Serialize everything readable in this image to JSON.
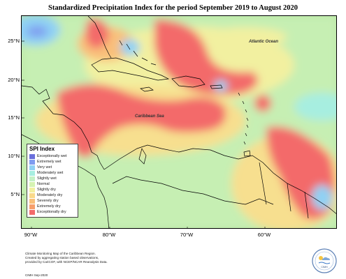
{
  "title": "Standardized Precipitation Index for the period September 2019 to August 2020",
  "map": {
    "lat_ticks": [
      "25°N",
      "20°N",
      "15°N",
      "10°N",
      "5°N"
    ],
    "lon_ticks": [
      "90°W",
      "80°W",
      "70°W",
      "60°W"
    ],
    "labels": {
      "atlantic": "Atlantic Ocean",
      "caribbean": "Caribbean Sea"
    }
  },
  "legend": {
    "title": "SPI Index",
    "items": [
      {
        "label": "Exceptionally wet",
        "color": "#6a6fdc"
      },
      {
        "label": "Extremely wet",
        "color": "#7f9cf0"
      },
      {
        "label": "Very wet",
        "color": "#8fd1f4"
      },
      {
        "label": "Moderately wet",
        "color": "#a7eee0"
      },
      {
        "label": "Slightly wet",
        "color": "#c4f1c6"
      },
      {
        "label": "Normal",
        "color": "#d5f3b2"
      },
      {
        "label": "Slightly dry",
        "color": "#f2f0a0"
      },
      {
        "label": "Moderately dry",
        "color": "#f9d98a"
      },
      {
        "label": "Severely dry",
        "color": "#f9c07a"
      },
      {
        "label": "Extremely dry",
        "color": "#f79f6c"
      },
      {
        "label": "Exceptionally dry",
        "color": "#f36b6b"
      }
    ]
  },
  "footer": {
    "lines": [
      "Climate Monitoring Map of the Caribbean Region.",
      "Created by aggregating station based observations,",
      "provided by CariCOF, with NCEP/NCAR Reanalysis Data."
    ],
    "credit": "CIMH Sep-2020"
  },
  "logo_text": "CIMH"
}
